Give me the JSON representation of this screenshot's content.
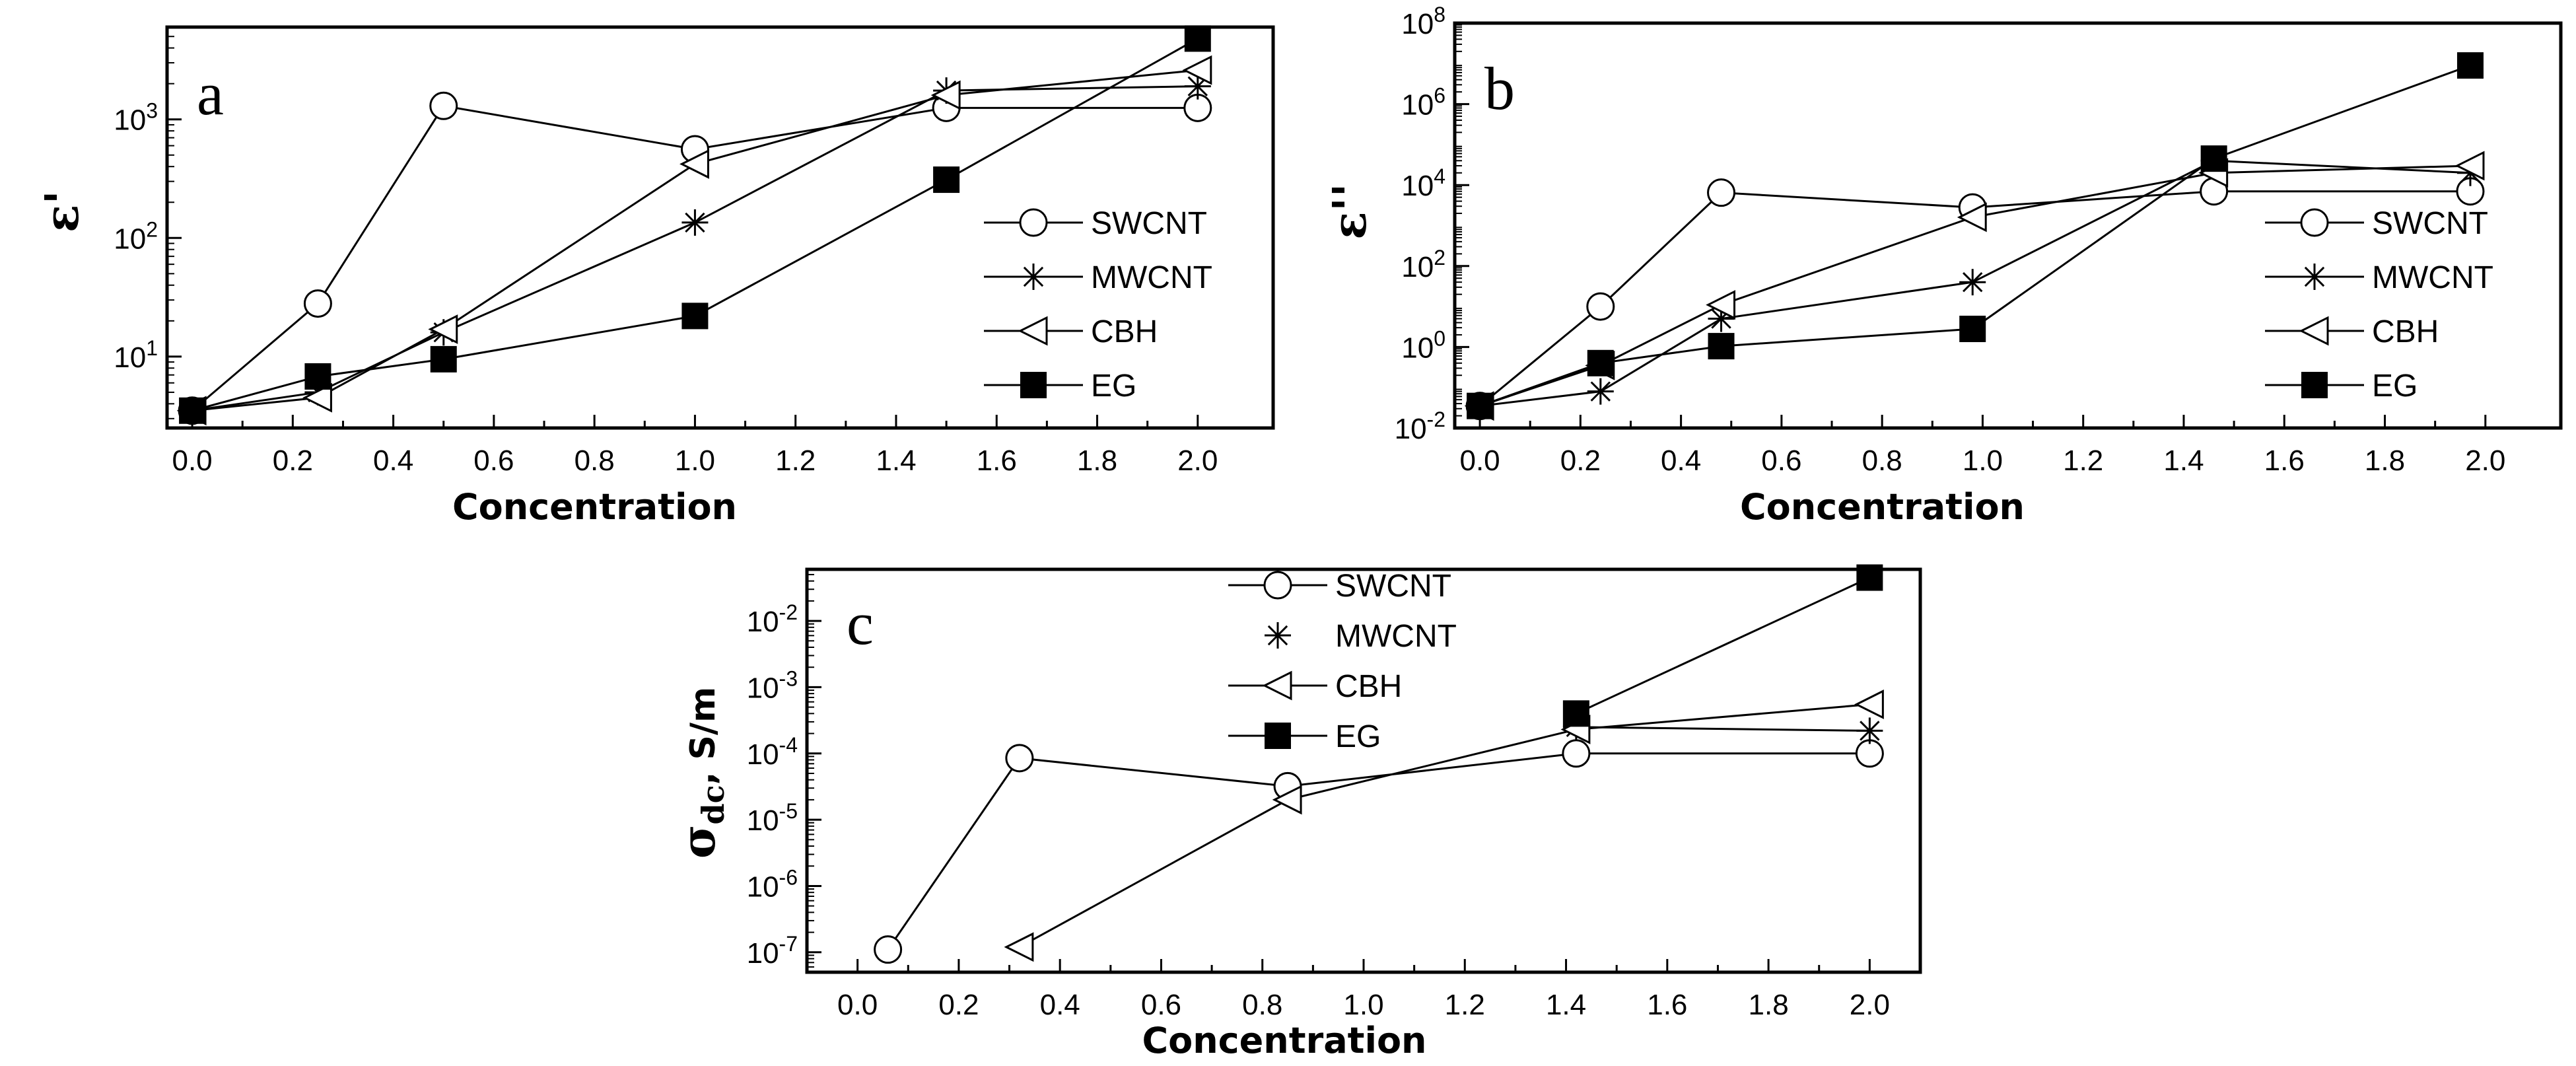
{
  "chart_data": [
    {
      "panel": "a",
      "type": "line",
      "x_scale": "linear",
      "y_scale": "log",
      "xlabel": "Concentration",
      "ylabel": "ε'",
      "xlim": [
        -0.05,
        2.15
      ],
      "ylim": [
        2.5,
        6000
      ],
      "x_ticks": [
        "0.0",
        "0.2",
        "0.4",
        "0.6",
        "0.8",
        "1.0",
        "1.2",
        "1.4",
        "1.6",
        "1.8",
        "2.0"
      ],
      "y_ticks": [
        {
          "value": 10,
          "base": "10",
          "exp": "1"
        },
        {
          "value": 100,
          "base": "10",
          "exp": "2"
        },
        {
          "value": 1000,
          "base": "10",
          "exp": "3"
        }
      ],
      "legend": {
        "placement": "center-right"
      },
      "series": [
        {
          "name": "SWCNT",
          "marker": "circle",
          "x": [
            0.0,
            0.25,
            0.5,
            1.0,
            1.5,
            2.0
          ],
          "y": [
            3.5,
            28,
            1300,
            560,
            1250,
            1250
          ]
        },
        {
          "name": "MWCNT",
          "marker": "star",
          "x": [
            0.0,
            0.25,
            0.5,
            1.0,
            1.5,
            2.0
          ],
          "y": [
            3.5,
            5,
            16,
            135,
            1750,
            1900
          ]
        },
        {
          "name": "CBH",
          "marker": "triangle-left",
          "x": [
            0.0,
            0.25,
            0.5,
            1.0,
            1.5,
            2.0
          ],
          "y": [
            3.5,
            4.5,
            17,
            420,
            1600,
            2600
          ]
        },
        {
          "name": "EG",
          "marker": "square",
          "x": [
            0.0,
            0.25,
            0.5,
            1.0,
            1.5,
            2.0
          ],
          "y": [
            3.5,
            6.8,
            9.5,
            22,
            310,
            4800
          ]
        }
      ]
    },
    {
      "panel": "b",
      "type": "line",
      "x_scale": "linear",
      "y_scale": "log",
      "xlabel": "Concentration",
      "ylabel": "ε''",
      "xlim": [
        -0.05,
        2.15
      ],
      "ylim": [
        0.01,
        100000000
      ],
      "x_ticks": [
        "0.0",
        "0.2",
        "0.4",
        "0.6",
        "0.8",
        "1.0",
        "1.2",
        "1.4",
        "1.6",
        "1.8",
        "2.0"
      ],
      "y_ticks": [
        {
          "value": 0.01,
          "base": "10",
          "exp": "-2"
        },
        {
          "value": 1,
          "base": "10",
          "exp": "0"
        },
        {
          "value": 100,
          "base": "10",
          "exp": "2"
        },
        {
          "value": 10000,
          "base": "10",
          "exp": "4"
        },
        {
          "value": 1000000,
          "base": "10",
          "exp": "6"
        },
        {
          "value": 100000000,
          "base": "10",
          "exp": "8"
        }
      ],
      "legend": {
        "placement": "center-right"
      },
      "series": [
        {
          "name": "SWCNT",
          "marker": "circle",
          "x": [
            0.0,
            0.24,
            0.48,
            0.98,
            1.46,
            1.97
          ],
          "y": [
            0.035,
            10,
            6500,
            2800,
            7000,
            7000
          ]
        },
        {
          "name": "MWCNT",
          "marker": "star",
          "x": [
            0.0,
            0.24,
            0.48,
            0.98,
            1.46,
            1.97
          ],
          "y": [
            0.035,
            0.08,
            5,
            40,
            40000,
            20000
          ]
        },
        {
          "name": "CBH",
          "marker": "triangle-left",
          "x": [
            0.0,
            0.24,
            0.48,
            0.98,
            1.46,
            1.97
          ],
          "y": [
            0.035,
            0.35,
            11,
            1600,
            20000,
            30000
          ]
        },
        {
          "name": "EG",
          "marker": "square",
          "x": [
            0.0,
            0.24,
            0.48,
            0.98,
            1.46,
            1.97
          ],
          "y": [
            0.035,
            0.4,
            1.05,
            2.8,
            45000,
            9000000
          ]
        }
      ]
    },
    {
      "panel": "c",
      "type": "line",
      "x_scale": "linear",
      "y_scale": "log",
      "xlabel": "Concentration",
      "ylabel_main": "σ",
      "ylabel_sub": "dc",
      "ylabel_unit": ", S/m",
      "xlim": [
        -0.1,
        2.1
      ],
      "ylim": [
        5e-08,
        0.06
      ],
      "x_ticks": [
        "0.0",
        "0.2",
        "0.4",
        "0.6",
        "0.8",
        "1.0",
        "1.2",
        "1.4",
        "1.6",
        "1.8",
        "2.0"
      ],
      "y_ticks": [
        {
          "value": 1e-07,
          "base": "10",
          "exp": "-7"
        },
        {
          "value": 1e-06,
          "base": "10",
          "exp": "-6"
        },
        {
          "value": 1e-05,
          "base": "10",
          "exp": "-5"
        },
        {
          "value": 0.0001,
          "base": "10",
          "exp": "-4"
        },
        {
          "value": 0.001,
          "base": "10",
          "exp": "-3"
        },
        {
          "value": 0.01,
          "base": "10",
          "exp": "-2"
        }
      ],
      "legend": {
        "placement": "top-left"
      },
      "series": [
        {
          "name": "SWCNT",
          "marker": "circle",
          "x": [
            0.06,
            0.32,
            0.85,
            1.42,
            2.0
          ],
          "y": [
            1.1e-07,
            8.5e-05,
            3.2e-05,
            0.0001,
            0.0001
          ]
        },
        {
          "name": "MWCNT",
          "marker": "star",
          "x": [
            1.42,
            2.0
          ],
          "y": [
            0.00025,
            0.00022
          ]
        },
        {
          "name": "CBH",
          "marker": "triangle-left",
          "x": [
            0.32,
            0.85,
            1.42,
            2.0
          ],
          "y": [
            1.2e-07,
            2e-05,
            0.00023,
            0.00055
          ]
        },
        {
          "name": "EG",
          "marker": "square",
          "x": [
            1.42,
            2.0
          ],
          "y": [
            0.0004,
            0.045
          ]
        }
      ]
    }
  ]
}
